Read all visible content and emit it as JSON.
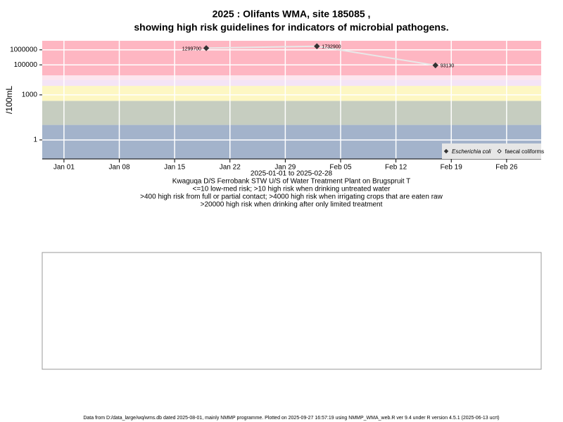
{
  "chart_data": {
    "type": "line",
    "title": [
      "2025 : Olifants WMA, site 185085 ,",
      "showing high risk guidelines for indicators of microbial pathogens."
    ],
    "y_label": "/100mL",
    "log_y": true,
    "grid": true,
    "legend_position": "bottom-right",
    "x": [
      "2025-01-19",
      "2025-02-02",
      "2025-02-17"
    ],
    "series": [
      {
        "name": "Escherichia coli",
        "color": "#333333",
        "line_color": "#e8e8e8",
        "marker": "filled-diamond",
        "values": [
          1299700,
          1732900,
          93130
        ]
      },
      {
        "name": "faecal coliforms",
        "color": "#333333",
        "marker": "open-diamond",
        "values": [
          null,
          null,
          null
        ]
      }
    ],
    "xlim": [
      "2024-12-29T06:00",
      "2025-03-02T09:00"
    ],
    "xticks": [
      {
        "value": "2025-01-01",
        "label": "Jan 01"
      },
      {
        "value": "2025-01-08",
        "label": "Jan 08"
      },
      {
        "value": "2025-01-15",
        "label": "Jan 15"
      },
      {
        "value": "2025-01-22",
        "label": "Jan 22"
      },
      {
        "value": "2025-01-29",
        "label": "Jan 29"
      },
      {
        "value": "2025-02-05",
        "label": "Feb 05"
      },
      {
        "value": "2025-02-12",
        "label": "Feb 12"
      },
      {
        "value": "2025-02-19",
        "label": "Feb 19"
      },
      {
        "value": "2025-02-26",
        "label": "Feb 26"
      }
    ],
    "ylim": [
      0.054,
      4000000
    ],
    "yticks": [
      1,
      1000,
      100000,
      1000000
    ],
    "bands": [
      {
        "from": 0.054,
        "to": 10,
        "color": "#a3b3cb"
      },
      {
        "from": 10,
        "to": 400,
        "color": "#c6cdc0"
      },
      {
        "from": 400,
        "to": 4000,
        "color": "#fdf7c3"
      },
      {
        "from": 4000,
        "to": 10000,
        "color": "#f4e4f6"
      },
      {
        "from": 10000,
        "to": 20000,
        "color": "#fde6ee"
      },
      {
        "from": 20000,
        "to": 4000000,
        "color": "#feb6c2"
      }
    ],
    "caption": [
      "2025-01-01 to 2025-02-28",
      "Kwaguqa D/S Ferrobank STW U/S of Water Treatment Plant on Brugspruit T",
      "<=10 low-med risk; >10 high risk when drinking untreated water",
      ">400 high risk from full or partial contact; >4000 high risk when irrigating crops that are eaten raw",
      ">20000 high risk when drinking after only limited treatment"
    ],
    "footer": "Data from D:/data_large/wq/wms.db dated 2025-08-01, mainly NMMP programme. Plotted on 2025-09-27 16:57:19 using NMMP_WMA_web.R ver 9.4 under R version 4.5.1 (2025-06-13 ucrt)"
  }
}
